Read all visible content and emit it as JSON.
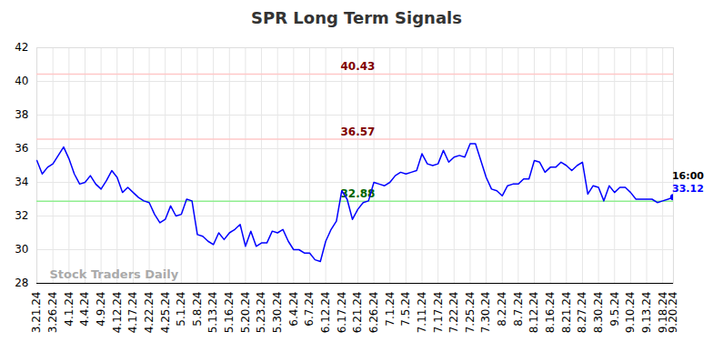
{
  "chart_data": {
    "type": "line",
    "title": "SPR Long Term Signals",
    "categories": [
      "3.21.24",
      null,
      null,
      "3.26.24",
      null,
      null,
      "4.1.24",
      null,
      null,
      "4.4.24",
      null,
      null,
      "4.9.24",
      null,
      null,
      "4.12.24",
      null,
      null,
      "4.17.24",
      null,
      null,
      "4.22.24",
      null,
      null,
      "4.25.24",
      null,
      null,
      "5.1.24",
      null,
      null,
      "5.8.24",
      null,
      null,
      "5.13.24",
      null,
      null,
      "5.16.24",
      null,
      null,
      "5.20.24",
      null,
      null,
      "5.23.24",
      null,
      null,
      "5.30.24",
      null,
      null,
      "6.4.24",
      null,
      null,
      "6.7.24",
      null,
      null,
      "6.12.24",
      null,
      null,
      "6.17.24",
      null,
      null,
      "6.21.24",
      null,
      null,
      "6.26.24",
      null,
      null,
      "7.1.24",
      null,
      null,
      "7.5.24",
      null,
      null,
      "7.11.24",
      null,
      null,
      "7.17.24",
      null,
      null,
      "7.22.24",
      null,
      null,
      "7.25.24",
      null,
      null,
      "7.30.24",
      null,
      null,
      "8.2.24",
      null,
      null,
      "8.7.24",
      null,
      null,
      "8.12.24",
      null,
      null,
      "8.16.24",
      null,
      null,
      "8.21.24",
      null,
      null,
      "8.27.24",
      null,
      null,
      "8.30.24",
      null,
      null,
      "9.5.24",
      null,
      null,
      "9.10.24",
      null,
      null,
      "9.13.24",
      null,
      null,
      "9.18.24",
      null,
      "9.20.24"
    ],
    "values": [
      35.3,
      34.5,
      34.9,
      35.1,
      35.6,
      36.1,
      35.4,
      34.5,
      33.9,
      34.0,
      34.4,
      33.9,
      33.6,
      34.1,
      34.7,
      34.3,
      33.4,
      33.7,
      33.4,
      33.1,
      32.9,
      32.8,
      32.1,
      31.6,
      31.8,
      32.6,
      32.0,
      32.1,
      33.0,
      32.9,
      30.9,
      30.8,
      30.5,
      30.3,
      31.0,
      30.6,
      31.0,
      31.2,
      31.5,
      30.2,
      31.1,
      30.2,
      30.4,
      30.4,
      31.1,
      31.0,
      31.2,
      30.5,
      30.0,
      30.0,
      29.8,
      29.8,
      29.4,
      29.3,
      30.5,
      31.2,
      31.7,
      33.5,
      33.0,
      31.8,
      32.4,
      32.8,
      32.9,
      34.0,
      33.9,
      33.8,
      34.0,
      34.4,
      34.6,
      34.5,
      34.6,
      34.7,
      35.7,
      35.1,
      35.0,
      35.1,
      35.9,
      35.2,
      35.5,
      35.6,
      35.5,
      36.3,
      36.3,
      35.3,
      34.3,
      33.6,
      33.5,
      33.2,
      33.8,
      33.9,
      33.9,
      34.2,
      34.2,
      35.3,
      35.2,
      34.6,
      34.9,
      34.9,
      35.2,
      35.0,
      34.7,
      35.0,
      35.2,
      33.3,
      33.8,
      33.7,
      32.9,
      33.8,
      33.4,
      33.7,
      33.7,
      33.4,
      33.0,
      33.0,
      33.0,
      33.0,
      32.8,
      32.9,
      33.0,
      33.12
    ],
    "color": "#0000ff",
    "levels": [
      {
        "value": 40.43,
        "color": "#ffc8c8",
        "text_color": "#800000"
      },
      {
        "value": 36.57,
        "color": "#ffc8c8",
        "text_color": "#800000"
      },
      {
        "value": 32.88,
        "color": "#90ee90",
        "text_color": "#006400"
      }
    ],
    "last_label": {
      "time": "16:00",
      "value": 33.12
    },
    "watermark": "Stock Traders Daily",
    "ylim": [
      28,
      42
    ],
    "yticks": [
      28,
      30,
      32,
      34,
      36,
      38,
      40,
      42
    ],
    "grid": true
  }
}
